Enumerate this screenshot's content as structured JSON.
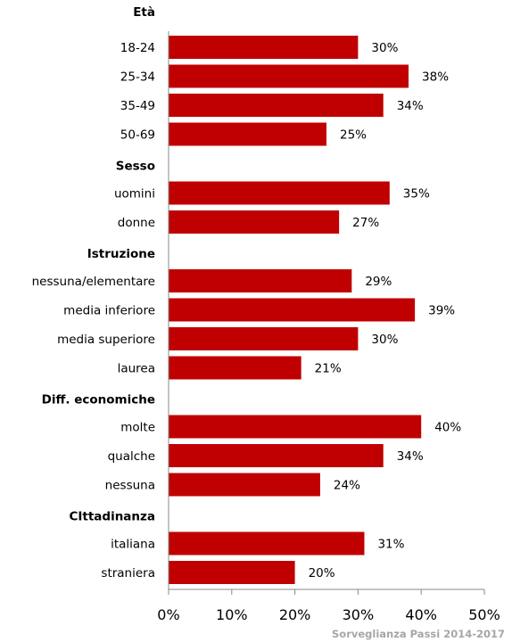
{
  "chart_data": {
    "type": "bar",
    "orientation": "horizontal",
    "groups": [
      {
        "title": "Età",
        "categories": [
          "18-24",
          "25-34",
          "35-49",
          "50-69"
        ],
        "values": [
          30,
          38,
          34,
          25
        ]
      },
      {
        "title": "Sesso",
        "categories": [
          "uomini",
          "donne"
        ],
        "values": [
          35,
          27
        ]
      },
      {
        "title": "Istruzione",
        "categories": [
          "nessuna/elementare",
          "media inferiore",
          "media superiore",
          "laurea"
        ],
        "values": [
          29,
          39,
          30,
          21
        ]
      },
      {
        "title": "Diff. economiche",
        "categories": [
          "molte",
          "qualche",
          "nessuna"
        ],
        "values": [
          40,
          34,
          24
        ]
      },
      {
        "title": "CIttadinanza",
        "categories": [
          "italiana",
          "straniera"
        ],
        "values": [
          31,
          20
        ]
      }
    ],
    "xlim": [
      0,
      50
    ],
    "xticks": [
      0,
      10,
      20,
      30,
      40,
      50
    ],
    "tick_suffix": "%",
    "value_suffix": "%",
    "bar_color": "#c00000",
    "grid": false,
    "legend": "none"
  },
  "source": "Sorveglianza Passi 2014-2017"
}
